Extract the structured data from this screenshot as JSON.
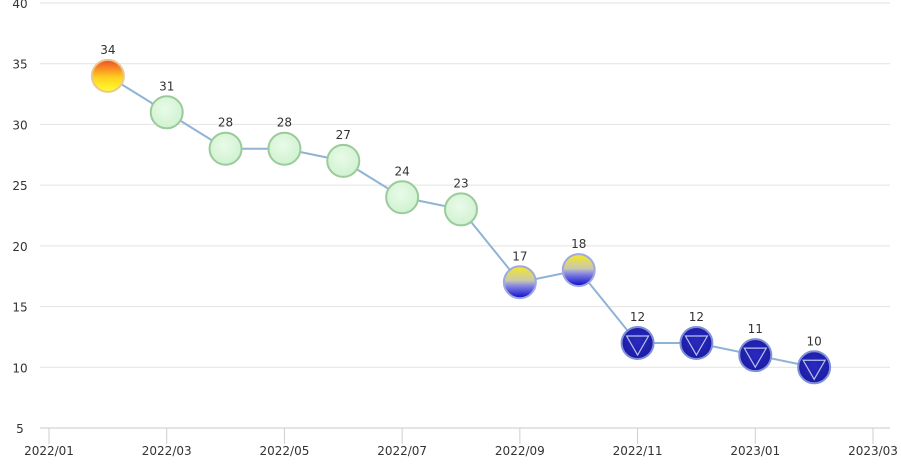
{
  "chart_data": {
    "type": "line",
    "title": "",
    "xlabel": "",
    "ylabel": "",
    "ylim": [
      5,
      40
    ],
    "yticks": [
      "5",
      "10",
      "15",
      "20",
      "25",
      "30",
      "35",
      "40"
    ],
    "xlim": [
      "2022/01",
      "2023/03"
    ],
    "xticks": [
      "2022/01",
      "2022/03",
      "2022/05",
      "2022/07",
      "2022/09",
      "2022/11",
      "2023/01",
      "2023/03"
    ],
    "grid": "horizontal",
    "line_color": "#8fb3d6",
    "x": [
      "2022/02",
      "2022/03",
      "2022/04",
      "2022/05",
      "2022/06",
      "2022/07",
      "2022/08",
      "2022/09",
      "2022/10",
      "2022/11",
      "2022/12",
      "2023/01",
      "2023/02"
    ],
    "values": [
      34,
      31,
      28,
      28,
      27,
      24,
      23,
      17,
      18,
      12,
      12,
      11,
      10
    ],
    "data_labels": [
      "34",
      "31",
      "28",
      "28",
      "27",
      "24",
      "23",
      "17",
      "18",
      "12",
      "12",
      "11",
      "10"
    ],
    "marker_styles": [
      "orange-yellow",
      "green",
      "green",
      "green",
      "green",
      "green",
      "green",
      "yellow-blue",
      "yellow-blue",
      "blue-triangle",
      "blue-triangle",
      "blue-triangle",
      "blue-triangle"
    ],
    "colors": {
      "orange-yellow": [
        "#f05a28",
        "#ffff20"
      ],
      "green": [
        "#d6f5d6",
        "#9acb9a"
      ],
      "yellow-blue": [
        "#f0e020",
        "#1010d0"
      ],
      "blue-triangle": [
        "#2020b0",
        "#8aa0e0"
      ]
    }
  }
}
